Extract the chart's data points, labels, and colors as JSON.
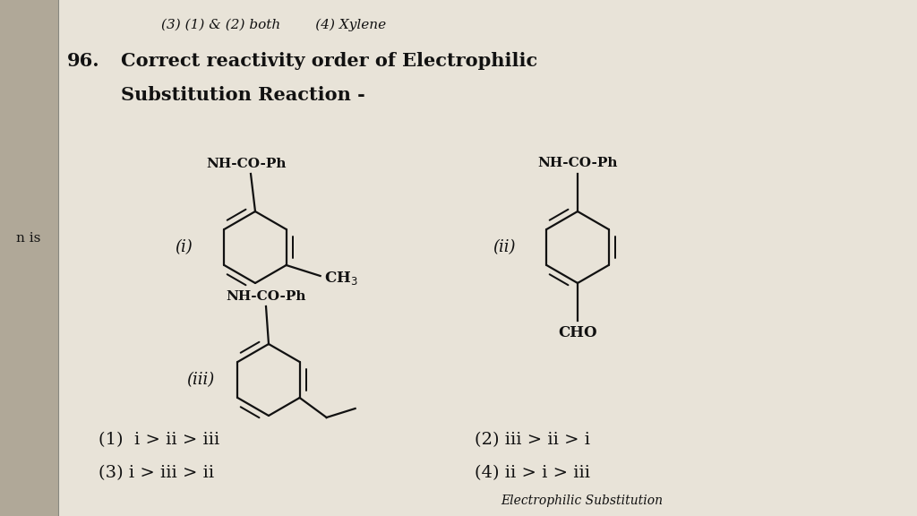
{
  "bg_color": "#d4cfc4",
  "page_color": "#e8e3d8",
  "left_bar_color": "#b0a898",
  "text_color": "#111111",
  "header": "(3) (1) & (2) both        (4) Xylene",
  "q_number": "96.",
  "title1": "Correct reactivity order of Electrophilic",
  "title2": "Substitution Reaction -",
  "label_i": "(i)",
  "label_ii": "(ii)",
  "label_iii": "(iii)",
  "nhcoph": "NH-CO-Ph",
  "ch3": "CH",
  "ch3_sub": "3",
  "cho": "CHO",
  "left_margin_text": "n is",
  "options": [
    "(1)  i > ii > iii",
    "(2) iii > ii > i",
    "(3) i > iii > ii",
    "(4) ii > i > iii"
  ],
  "footer": "Electrophilic Substitution",
  "ring_r": 0.4,
  "lw_ring": 1.6,
  "font_label": 13,
  "font_title": 15,
  "font_opts": 14,
  "font_sub": 12
}
